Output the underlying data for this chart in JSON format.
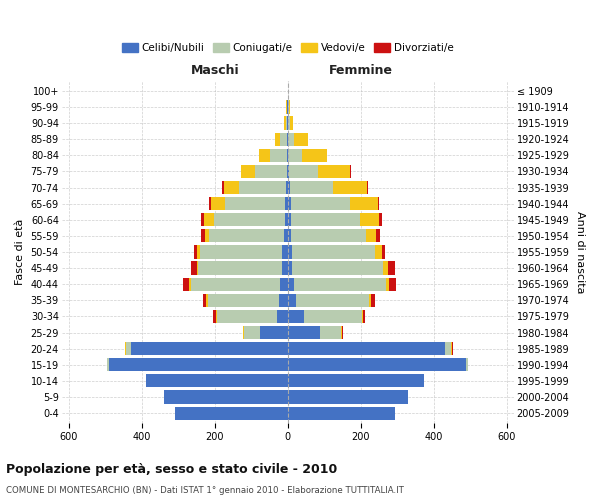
{
  "age_groups": [
    "0-4",
    "5-9",
    "10-14",
    "15-19",
    "20-24",
    "25-29",
    "30-34",
    "35-39",
    "40-44",
    "45-49",
    "50-54",
    "55-59",
    "60-64",
    "65-69",
    "70-74",
    "75-79",
    "80-84",
    "85-89",
    "90-94",
    "95-99",
    "100+"
  ],
  "birth_years": [
    "2005-2009",
    "2000-2004",
    "1995-1999",
    "1990-1994",
    "1985-1989",
    "1980-1984",
    "1975-1979",
    "1970-1974",
    "1965-1969",
    "1960-1964",
    "1955-1959",
    "1950-1954",
    "1945-1949",
    "1940-1944",
    "1935-1939",
    "1930-1934",
    "1925-1929",
    "1920-1924",
    "1915-1919",
    "1910-1914",
    "≤ 1909"
  ],
  "m_cel": [
    310,
    340,
    390,
    490,
    430,
    75,
    30,
    25,
    20,
    15,
    15,
    10,
    8,
    8,
    5,
    3,
    2,
    2,
    1,
    1,
    0
  ],
  "m_con": [
    0,
    0,
    0,
    5,
    15,
    45,
    165,
    195,
    245,
    230,
    225,
    205,
    195,
    165,
    128,
    88,
    48,
    18,
    5,
    2,
    0
  ],
  "m_ved": [
    0,
    0,
    0,
    0,
    2,
    2,
    3,
    5,
    5,
    5,
    8,
    12,
    28,
    38,
    42,
    38,
    28,
    14,
    5,
    2,
    0
  ],
  "m_div": [
    0,
    0,
    0,
    0,
    0,
    2,
    8,
    8,
    18,
    15,
    10,
    10,
    8,
    5,
    5,
    0,
    0,
    0,
    0,
    0,
    0
  ],
  "f_nub": [
    295,
    330,
    375,
    490,
    430,
    88,
    45,
    22,
    18,
    12,
    12,
    10,
    8,
    8,
    5,
    3,
    2,
    2,
    1,
    1,
    0
  ],
  "f_con": [
    0,
    0,
    0,
    5,
    18,
    58,
    158,
    202,
    252,
    248,
    228,
    205,
    190,
    162,
    120,
    80,
    38,
    15,
    5,
    2,
    0
  ],
  "f_ved": [
    0,
    0,
    0,
    0,
    2,
    2,
    3,
    5,
    8,
    15,
    18,
    28,
    52,
    78,
    92,
    88,
    68,
    38,
    8,
    3,
    0
  ],
  "f_div": [
    0,
    0,
    0,
    0,
    2,
    3,
    5,
    10,
    20,
    20,
    10,
    10,
    8,
    3,
    2,
    2,
    0,
    0,
    0,
    0,
    0
  ],
  "color_celibe": "#4472C4",
  "color_coniugato": "#B8CCB0",
  "color_vedovo": "#F5C518",
  "color_divorziato": "#CC1111",
  "xlim": 620,
  "title": "Popolazione per età, sesso e stato civile - 2010",
  "subtitle": "COMUNE DI MONTESARCHIO (BN) - Dati ISTAT 1° gennaio 2010 - Elaborazione TUTTITALIA.IT",
  "legend_labels": [
    "Celibi/Nubili",
    "Coniugati/e",
    "Vedovi/e",
    "Divorziati/e"
  ],
  "xlabel_maschi": "Maschi",
  "xlabel_femmine": "Femmine",
  "ylabel_left": "Fasce di età",
  "ylabel_right": "Anni di nascita",
  "bg_color": "#FFFFFF",
  "grid_color": "#BBBBBB"
}
